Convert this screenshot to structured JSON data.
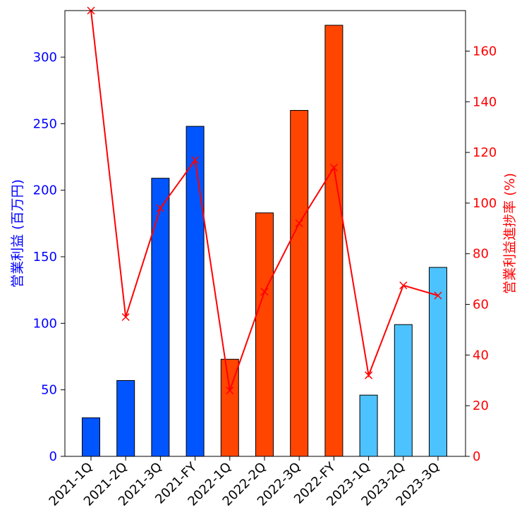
{
  "chart_data": {
    "type": "bar+line",
    "categories": [
      "2021-1Q",
      "2021-2Q",
      "2021-3Q",
      "2021-FY",
      "2022-1Q",
      "2022-2Q",
      "2022-3Q",
      "2022-FY",
      "2023-1Q",
      "2023-2Q",
      "2023-3Q"
    ],
    "bar_series": {
      "name": "営業利益",
      "values": [
        29,
        57,
        209,
        248,
        73,
        183,
        260,
        324,
        46,
        99,
        142
      ],
      "year_groups": [
        "2021",
        "2021",
        "2021",
        "2021",
        "2022",
        "2022",
        "2022",
        "2022",
        "2023",
        "2023",
        "2023"
      ]
    },
    "line_series": {
      "name": "営業利益進捗率",
      "values": [
        176,
        55,
        98,
        117,
        26,
        65,
        92,
        114,
        32,
        67.5,
        63.5
      ],
      "marker": "x"
    },
    "ylabel_left": "営業利益 (百万円)",
    "ylabel_right": "営業利益進捗率 (%)",
    "ylim_left": [
      0,
      335
    ],
    "ylim_right": [
      0,
      176
    ],
    "yticks_left": [
      0,
      50,
      100,
      150,
      200,
      250,
      300
    ],
    "yticks_right": [
      0,
      20,
      40,
      60,
      80,
      100,
      120,
      140,
      160
    ],
    "colors": {
      "2021": "#0055ff",
      "2022": "#ff4500",
      "2023": "#4cc3ff",
      "line": "#ff0000",
      "left_axis_text": "#0000ff",
      "right_axis_text": "#ff0000",
      "bar_edge": "#000000"
    }
  }
}
